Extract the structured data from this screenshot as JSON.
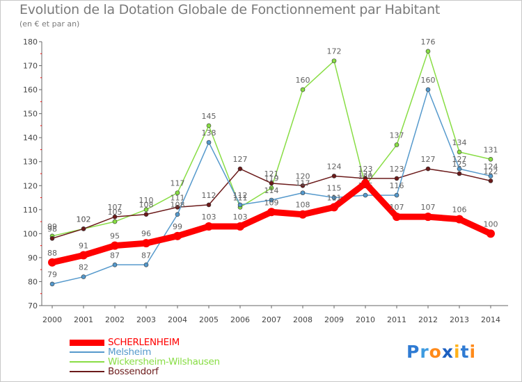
{
  "chart_data": {
    "type": "line",
    "title": "Evolution de la Dotation Globale de Fonctionnement par Habitant",
    "subtitle": "(en € et par an)",
    "xlabel": "",
    "ylabel": "",
    "ylim": [
      70,
      180
    ],
    "yticks": [
      70,
      80,
      90,
      100,
      110,
      120,
      130,
      140,
      150,
      160,
      170,
      180
    ],
    "x": [
      "2000",
      "2001",
      "2002",
      "2003",
      "2004",
      "2005",
      "2006",
      "2007",
      "2008",
      "2009",
      "2010",
      "2011",
      "2012",
      "2013",
      "2014"
    ],
    "grid": false,
    "legend_position": "bottom-left",
    "series": [
      {
        "name": "Wickersheim-Wilshausen",
        "color": "#88dd44",
        "values": [
          99,
          102,
          105,
          110,
          117,
          145,
          111,
          119,
          160,
          172,
          120,
          137,
          176,
          134,
          131
        ]
      },
      {
        "name": "Bossendorf",
        "color": "#6b1a1a",
        "values": [
          98,
          102,
          107,
          108,
          111,
          112,
          127,
          121,
          120,
          124,
          123,
          123,
          127,
          125,
          122
        ]
      },
      {
        "name": "Melsheim",
        "color": "#5599cc",
        "values": [
          79,
          82,
          87,
          87,
          108,
          138,
          112,
          114,
          117,
          115,
          116,
          116,
          160,
          127,
          124
        ]
      },
      {
        "name": "SCHERLENHEIM",
        "color": "#ff0000",
        "values": [
          88,
          91,
          95,
          96,
          99,
          103,
          103,
          109,
          108,
          111,
          121,
          107,
          107,
          106,
          100
        ]
      }
    ]
  },
  "legend": [
    {
      "label": "SCHERLENHEIM",
      "color": "#ff0000"
    },
    {
      "label": "Melsheim",
      "color": "#5599cc"
    },
    {
      "label": "Wickersheim-Wilshausen",
      "color": "#88dd44"
    },
    {
      "label": "Bossendorf",
      "color": "#6b1a1a"
    }
  ],
  "logo": {
    "letters": [
      "P",
      "r",
      "o",
      "x",
      "i",
      "t",
      "i"
    ],
    "colors": [
      "#2f7bd3",
      "#3d9be0",
      "#ff8a1a",
      "#1c5fc0",
      "#ffb21a",
      "#2f7bd3",
      "#ff8a1a"
    ]
  }
}
